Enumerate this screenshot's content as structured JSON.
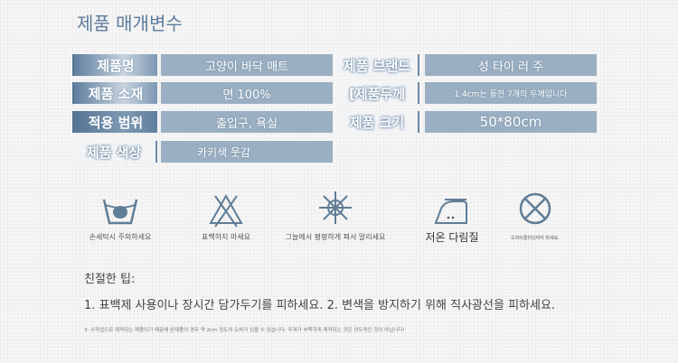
{
  "title": "제품 매개변수",
  "specs": [
    {
      "label": "제품명",
      "value": "고양이 바닥 매트"
    },
    {
      "label": "제품 브랜드",
      "value": "성 타이 러 주"
    },
    {
      "label": "제품 소재",
      "value": "면 100%"
    },
    {
      "label": "[제품두께",
      "value": "1.4cm는 동전 7개의 두께입니다"
    },
    {
      "label": "적용 범위",
      "value": "출입구, 욕실"
    },
    {
      "label": "제품 크기",
      "value": "50*80cm"
    },
    {
      "label": "제품 색상",
      "value": "카키색 웃감"
    }
  ],
  "care": [
    {
      "icon": "hand-wash-icon",
      "label": "손세탁시 주의하세요"
    },
    {
      "icon": "no-bleach-icon",
      "label": "표백하지 마세요"
    },
    {
      "icon": "dry-in-shade-icon",
      "label": "그늘에서 평평하게 펴서 말리세요"
    },
    {
      "icon": "low-iron-icon",
      "label": "저온 다림질"
    },
    {
      "icon": "no-dry-clean-icon",
      "label": "드라이클리닝하지 마세요."
    }
  ],
  "tips": {
    "title": "친절한 팁:",
    "line1": "1. 표백제 사용이나 장시간 담가두기를 피하세요. 2. 변색을 방지하기 위해 직사광선을 피하세요.",
    "line3": "3. 수작업으로 제작되는 제품이기 때문에 완제품의 경우 약 2cm 정도의 오차가 있을 수 있습니다. 무게가 부족하게 제작되는 것은 의도적인 것이 아닙니다!"
  },
  "colors": {
    "accent": "#5d7c9c",
    "value_bg": "#9aafc2",
    "icon": "#5f7d96"
  }
}
